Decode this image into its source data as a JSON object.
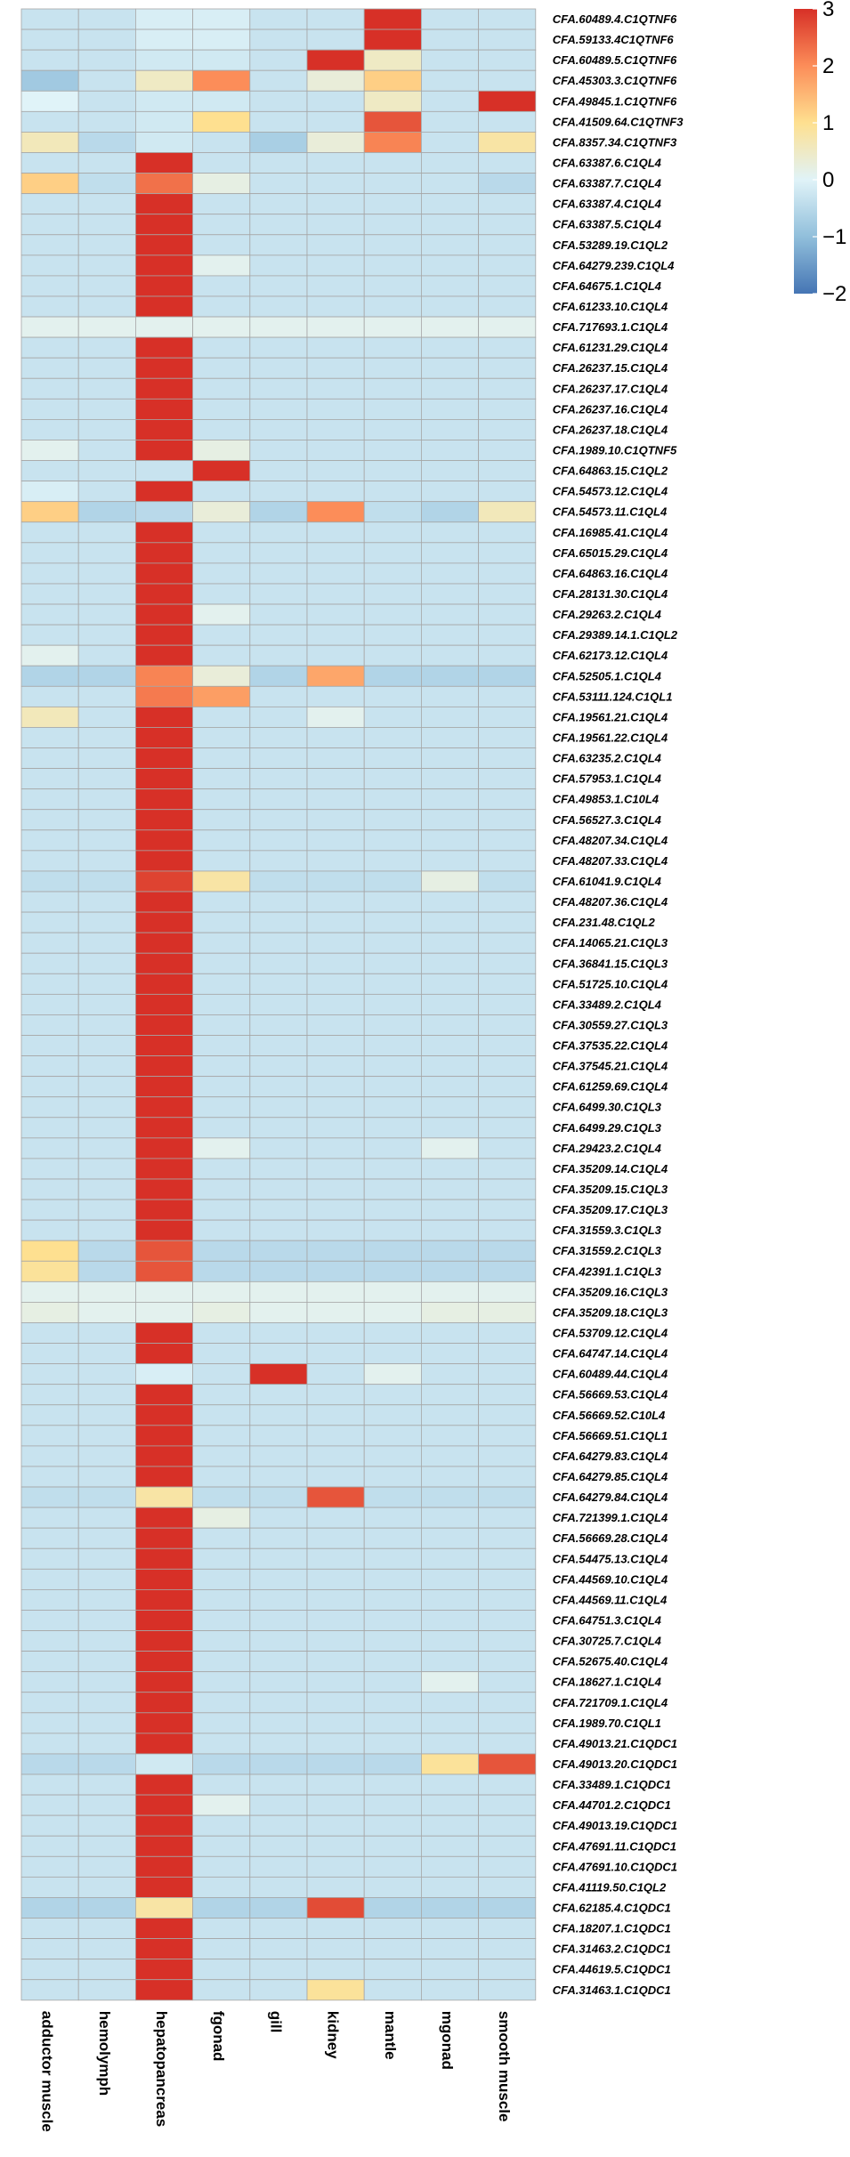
{
  "chart_data": {
    "type": "heatmap",
    "title": "",
    "columns": [
      "adductor muscle",
      "hemolymph",
      "hepatopancreas",
      "fgonad",
      "gill",
      "kidney",
      "mantle",
      "mgonad",
      "smooth muscle"
    ],
    "rows": [
      "CFA.60489.4.C1QTNF6",
      "CFA.59133.4C1QTNF6",
      "CFA.60489.5.C1QTNF6",
      "CFA.45303.3.C1QTNF6",
      "CFA.49845.1.C1QTNF6",
      "CFA.41509.64.C1QTNF3",
      "CFA.8357.34.C1QTNF3",
      "CFA.63387.6.C1QL4",
      "CFA.63387.7.C1QL4",
      "CFA.63387.4.C1QL4",
      "CFA.63387.5.C1QL4",
      "CFA.53289.19.C1QL2",
      "CFA.64279.239.C1QL4",
      "CFA.64675.1.C1QL4",
      "CFA.61233.10.C1QL4",
      "CFA.717693.1.C1QL4",
      "CFA.61231.29.C1QL4",
      "CFA.26237.15.C1QL4",
      "CFA.26237.17.C1QL4",
      "CFA.26237.16.C1QL4",
      "CFA.26237.18.C1QL4",
      "CFA.1989.10.C1QTNF5",
      "CFA.64863.15.C1QL2",
      "CFA.54573.12.C1QL4",
      "CFA.54573.11.C1QL4",
      "CFA.16985.41.C1QL4",
      "CFA.65015.29.C1QL4",
      "CFA.64863.16.C1QL4",
      "CFA.28131.30.C1QL4",
      "CFA.29263.2.C1QL4",
      "CFA.29389.14.1.C1QL2",
      "CFA.62173.12.C1QL4",
      "CFA.52505.1.C1QL4",
      "CFA.53111.124.C1QL1",
      "CFA.19561.21.C1QL4",
      "CFA.19561.22.C1QL4",
      "CFA.63235.2.C1QL4",
      "CFA.57953.1.C1QL4",
      "CFA.49853.1.C10L4",
      "CFA.56527.3.C1QL4",
      "CFA.48207.34.C1QL4",
      "CFA.48207.33.C1QL4",
      "CFA.61041.9.C1QL4",
      "CFA.48207.36.C1QL4",
      "CFA.231.48.C1QL2",
      "CFA.14065.21.C1QL3",
      "CFA.36841.15.C1QL3",
      "CFA.51725.10.C1QL4",
      "CFA.33489.2.C1QL4",
      "CFA.30559.27.C1QL3",
      "CFA.37535.22.C1QL4",
      "CFA.37545.21.C1QL4",
      "CFA.61259.69.C1QL4",
      "CFA.6499.30.C1QL3",
      "CFA.6499.29.C1QL3",
      "CFA.29423.2.C1QL4",
      "CFA.35209.14.C1QL4",
      "CFA.35209.15.C1QL3",
      "CFA.35209.17.C1QL3",
      "CFA.31559.3.C1QL3",
      "CFA.31559.2.C1QL3",
      "CFA.42391.1.C1QL3",
      "CFA.35209.16.C1QL3",
      "CFA.35209.18.C1QL3",
      "CFA.53709.12.C1QL4",
      "CFA.64747.14.C1QL4",
      "CFA.60489.44.C1QL4",
      "CFA.56669.53.C1QL4",
      "CFA.56669.52.C10L4",
      "CFA.56669.51.C1QL1",
      "CFA.64279.83.C1QL4",
      "CFA.64279.85.C1QL4",
      "CFA.64279.84.C1QL4",
      "CFA.721399.1.C1QL4",
      "CFA.56669.28.C1QL4",
      "CFA.54475.13.C1QL4",
      "CFA.44569.10.C1QL4",
      "CFA.44569.11.C1QL4",
      "CFA.64751.3.C1QL4",
      "CFA.30725.7.C1QL4",
      "CFA.52675.40.C1QL4",
      "CFA.18627.1.C1QL4",
      "CFA.721709.1.C1QL4",
      "CFA.1989.70.C1QL1",
      "CFA.49013.21.C1QDC1",
      "CFA.49013.20.C1QDC1",
      "CFA.33489.1.C1QDC1",
      "CFA.44701.2.C1QDC1",
      "CFA.49013.19.C1QDC1",
      "CFA.47691.11.C1QDC1",
      "CFA.47691.10.C1QDC1",
      "CFA.41119.50.C1QL2",
      "CFA.62185.4.C1QDC1",
      "CFA.18207.1.C1QDC1",
      "CFA.31463.2.C1QDC1",
      "CFA.44619.5.C1QDC1",
      "CFA.31463.1.C1QDC1"
    ],
    "values": [
      [
        -0.3,
        -0.3,
        -0.1,
        -0.1,
        -0.3,
        -0.3,
        3.0,
        -0.3,
        -0.3
      ],
      [
        -0.3,
        -0.3,
        -0.1,
        -0.1,
        -0.3,
        -0.3,
        3.0,
        -0.3,
        -0.3
      ],
      [
        -0.3,
        -0.3,
        -0.2,
        -0.2,
        -0.3,
        3.0,
        0.5,
        -0.3,
        -0.3
      ],
      [
        -0.8,
        -0.3,
        0.5,
        2.0,
        -0.3,
        0.3,
        1.2,
        -0.3,
        -0.3
      ],
      [
        0.0,
        -0.3,
        -0.2,
        -0.2,
        -0.3,
        -0.3,
        0.5,
        -0.3,
        3.0
      ],
      [
        -0.3,
        -0.3,
        -0.2,
        1.0,
        -0.3,
        -0.3,
        2.6,
        -0.3,
        -0.3
      ],
      [
        0.6,
        -0.5,
        -0.2,
        -0.3,
        -0.7,
        0.3,
        2.1,
        -0.3,
        0.8
      ],
      [
        -0.3,
        -0.3,
        3.0,
        -0.3,
        -0.3,
        -0.3,
        -0.3,
        -0.3,
        -0.3
      ],
      [
        1.2,
        -0.4,
        2.3,
        0.2,
        -0.3,
        -0.3,
        -0.3,
        -0.3,
        -0.5
      ],
      [
        -0.3,
        -0.3,
        3.0,
        -0.3,
        -0.3,
        -0.3,
        -0.3,
        -0.3,
        -0.3
      ],
      [
        -0.3,
        -0.3,
        3.0,
        -0.3,
        -0.3,
        -0.3,
        -0.3,
        -0.3,
        -0.3
      ],
      [
        -0.3,
        -0.3,
        3.0,
        -0.3,
        -0.3,
        -0.3,
        -0.3,
        -0.3,
        -0.3
      ],
      [
        -0.3,
        -0.3,
        3.0,
        0.1,
        -0.3,
        -0.3,
        -0.3,
        -0.3,
        -0.3
      ],
      [
        -0.3,
        -0.3,
        3.0,
        -0.3,
        -0.3,
        -0.3,
        -0.3,
        -0.3,
        -0.3
      ],
      [
        -0.3,
        -0.3,
        3.0,
        -0.3,
        -0.3,
        -0.3,
        -0.3,
        -0.3,
        -0.3
      ],
      [
        0.1,
        0.1,
        0.1,
        0.1,
        0.1,
        0.1,
        0.1,
        0.1,
        0.1
      ],
      [
        -0.3,
        -0.3,
        3.0,
        -0.3,
        -0.3,
        -0.3,
        -0.3,
        -0.3,
        -0.3
      ],
      [
        -0.3,
        -0.3,
        3.0,
        -0.3,
        -0.3,
        -0.3,
        -0.3,
        -0.3,
        -0.3
      ],
      [
        -0.3,
        -0.3,
        3.0,
        -0.3,
        -0.3,
        -0.3,
        -0.3,
        -0.3,
        -0.3
      ],
      [
        -0.3,
        -0.3,
        3.0,
        -0.3,
        -0.3,
        -0.3,
        -0.3,
        -0.3,
        -0.3
      ],
      [
        -0.3,
        -0.3,
        3.0,
        -0.3,
        -0.3,
        -0.3,
        -0.3,
        -0.3,
        -0.3
      ],
      [
        0.1,
        -0.3,
        3.0,
        0.2,
        -0.3,
        -0.3,
        -0.3,
        -0.3,
        -0.3
      ],
      [
        -0.3,
        -0.3,
        -0.3,
        3.0,
        -0.3,
        -0.3,
        -0.3,
        -0.3,
        -0.3
      ],
      [
        -0.1,
        -0.3,
        3.0,
        -0.3,
        -0.3,
        -0.3,
        -0.3,
        -0.3,
        -0.3
      ],
      [
        1.2,
        -0.6,
        -0.5,
        0.3,
        -0.6,
        2.0,
        -0.4,
        -0.6,
        0.6
      ],
      [
        -0.3,
        -0.3,
        3.0,
        -0.3,
        -0.3,
        -0.3,
        -0.3,
        -0.3,
        -0.3
      ],
      [
        -0.3,
        -0.3,
        3.0,
        -0.3,
        -0.3,
        -0.3,
        -0.3,
        -0.3,
        -0.3
      ],
      [
        -0.3,
        -0.3,
        3.0,
        -0.3,
        -0.3,
        -0.3,
        -0.3,
        -0.3,
        -0.3
      ],
      [
        -0.3,
        -0.3,
        3.0,
        -0.3,
        -0.3,
        -0.3,
        -0.3,
        -0.3,
        -0.3
      ],
      [
        -0.3,
        -0.3,
        3.0,
        0.1,
        -0.3,
        -0.3,
        -0.3,
        -0.3,
        -0.3
      ],
      [
        -0.3,
        -0.3,
        3.0,
        -0.3,
        -0.3,
        -0.3,
        -0.3,
        -0.3,
        -0.3
      ],
      [
        0.1,
        -0.3,
        3.0,
        -0.3,
        -0.3,
        -0.3,
        -0.3,
        -0.3,
        -0.3
      ],
      [
        -0.6,
        -0.6,
        2.1,
        0.3,
        -0.6,
        1.7,
        -0.6,
        -0.6,
        -0.6
      ],
      [
        -0.3,
        -0.3,
        2.2,
        1.8,
        -0.3,
        -0.3,
        -0.3,
        -0.3,
        -0.3
      ],
      [
        0.6,
        -0.3,
        3.0,
        -0.3,
        -0.3,
        0.1,
        -0.3,
        -0.3,
        -0.3
      ],
      [
        -0.3,
        -0.3,
        3.0,
        -0.3,
        -0.3,
        -0.3,
        -0.3,
        -0.3,
        -0.3
      ],
      [
        -0.3,
        -0.3,
        3.0,
        -0.3,
        -0.3,
        -0.3,
        -0.3,
        -0.3,
        -0.3
      ],
      [
        -0.3,
        -0.3,
        3.0,
        -0.3,
        -0.3,
        -0.3,
        -0.3,
        -0.3,
        -0.3
      ],
      [
        -0.3,
        -0.3,
        3.0,
        -0.3,
        -0.3,
        -0.3,
        -0.3,
        -0.3,
        -0.3
      ],
      [
        -0.3,
        -0.3,
        3.0,
        -0.3,
        -0.3,
        -0.3,
        -0.3,
        -0.3,
        -0.3
      ],
      [
        -0.3,
        -0.3,
        3.0,
        -0.3,
        -0.3,
        -0.3,
        -0.3,
        -0.3,
        -0.3
      ],
      [
        -0.3,
        -0.3,
        3.0,
        -0.3,
        -0.3,
        -0.3,
        -0.3,
        -0.3,
        -0.3
      ],
      [
        -0.4,
        -0.4,
        2.8,
        0.8,
        -0.4,
        -0.4,
        -0.4,
        0.2,
        -0.4
      ],
      [
        -0.3,
        -0.3,
        3.0,
        -0.3,
        -0.3,
        -0.3,
        -0.3,
        -0.3,
        -0.3
      ],
      [
        -0.3,
        -0.3,
        3.0,
        -0.3,
        -0.3,
        -0.3,
        -0.3,
        -0.3,
        -0.3
      ],
      [
        -0.3,
        -0.3,
        3.0,
        -0.3,
        -0.3,
        -0.3,
        -0.3,
        -0.3,
        -0.3
      ],
      [
        -0.3,
        -0.3,
        3.0,
        -0.3,
        -0.3,
        -0.3,
        -0.3,
        -0.3,
        -0.3
      ],
      [
        -0.3,
        -0.3,
        3.0,
        -0.3,
        -0.3,
        -0.3,
        -0.3,
        -0.3,
        -0.3
      ],
      [
        -0.3,
        -0.3,
        3.0,
        -0.3,
        -0.3,
        -0.3,
        -0.3,
        -0.3,
        -0.3
      ],
      [
        -0.3,
        -0.3,
        3.0,
        -0.3,
        -0.3,
        -0.3,
        -0.3,
        -0.3,
        -0.3
      ],
      [
        -0.3,
        -0.3,
        3.0,
        -0.3,
        -0.3,
        -0.3,
        -0.3,
        -0.3,
        -0.3
      ],
      [
        -0.3,
        -0.3,
        3.0,
        -0.3,
        -0.3,
        -0.3,
        -0.3,
        -0.3,
        -0.3
      ],
      [
        -0.3,
        -0.3,
        3.0,
        -0.3,
        -0.3,
        -0.3,
        -0.3,
        -0.3,
        -0.3
      ],
      [
        -0.3,
        -0.3,
        3.0,
        -0.3,
        -0.3,
        -0.3,
        -0.3,
        -0.3,
        -0.3
      ],
      [
        -0.3,
        -0.3,
        3.0,
        -0.3,
        -0.3,
        -0.3,
        -0.3,
        -0.3,
        -0.3
      ],
      [
        -0.3,
        -0.3,
        3.0,
        0.1,
        -0.3,
        -0.3,
        -0.3,
        0.1,
        -0.3
      ],
      [
        -0.3,
        -0.3,
        3.0,
        -0.3,
        -0.3,
        -0.3,
        -0.3,
        -0.3,
        -0.3
      ],
      [
        -0.3,
        -0.3,
        3.0,
        -0.3,
        -0.3,
        -0.3,
        -0.3,
        -0.3,
        -0.3
      ],
      [
        -0.3,
        -0.3,
        3.0,
        -0.3,
        -0.3,
        -0.3,
        -0.3,
        -0.3,
        -0.3
      ],
      [
        -0.3,
        -0.3,
        3.0,
        -0.3,
        -0.3,
        -0.3,
        -0.3,
        -0.3,
        -0.3
      ],
      [
        1.0,
        -0.5,
        2.6,
        -0.5,
        -0.5,
        -0.5,
        -0.5,
        -0.5,
        -0.5
      ],
      [
        0.9,
        -0.5,
        2.6,
        -0.5,
        -0.5,
        -0.5,
        -0.5,
        -0.5,
        -0.5
      ],
      [
        0.1,
        0.1,
        0.1,
        0.1,
        0.1,
        0.1,
        0.1,
        0.1,
        0.1
      ],
      [
        0.2,
        0.1,
        0.1,
        0.2,
        0.1,
        0.1,
        0.1,
        0.2,
        0.2
      ],
      [
        -0.3,
        -0.3,
        3.0,
        -0.3,
        -0.3,
        -0.3,
        -0.3,
        -0.3,
        -0.3
      ],
      [
        -0.3,
        -0.3,
        3.0,
        -0.3,
        -0.3,
        -0.3,
        -0.3,
        -0.3,
        -0.3
      ],
      [
        -0.3,
        -0.3,
        -0.1,
        -0.3,
        3.0,
        -0.3,
        0.1,
        -0.3,
        -0.3
      ],
      [
        -0.3,
        -0.3,
        3.0,
        -0.3,
        -0.3,
        -0.3,
        -0.3,
        -0.3,
        -0.3
      ],
      [
        -0.3,
        -0.3,
        3.0,
        -0.3,
        -0.3,
        -0.3,
        -0.3,
        -0.3,
        -0.3
      ],
      [
        -0.3,
        -0.3,
        3.0,
        -0.3,
        -0.3,
        -0.3,
        -0.3,
        -0.3,
        -0.3
      ],
      [
        -0.3,
        -0.3,
        3.0,
        -0.3,
        -0.3,
        -0.3,
        -0.3,
        -0.3,
        -0.3
      ],
      [
        -0.3,
        -0.3,
        3.0,
        -0.3,
        -0.3,
        -0.3,
        -0.3,
        -0.3,
        -0.3
      ],
      [
        -0.4,
        -0.4,
        0.8,
        -0.4,
        -0.4,
        2.6,
        -0.4,
        -0.4,
        -0.4
      ],
      [
        -0.3,
        -0.3,
        3.0,
        0.2,
        -0.3,
        -0.3,
        -0.3,
        -0.3,
        -0.3
      ],
      [
        -0.3,
        -0.3,
        3.0,
        -0.3,
        -0.3,
        -0.3,
        -0.3,
        -0.3,
        -0.3
      ],
      [
        -0.3,
        -0.3,
        3.0,
        -0.3,
        -0.3,
        -0.3,
        -0.3,
        -0.3,
        -0.3
      ],
      [
        -0.3,
        -0.3,
        3.0,
        -0.3,
        -0.3,
        -0.3,
        -0.3,
        -0.3,
        -0.3
      ],
      [
        -0.3,
        -0.3,
        3.0,
        -0.3,
        -0.3,
        -0.3,
        -0.3,
        -0.3,
        -0.3
      ],
      [
        -0.3,
        -0.3,
        3.0,
        -0.3,
        -0.3,
        -0.3,
        -0.3,
        -0.3,
        -0.3
      ],
      [
        -0.3,
        -0.3,
        3.0,
        -0.3,
        -0.3,
        -0.3,
        -0.3,
        -0.3,
        -0.3
      ],
      [
        -0.3,
        -0.3,
        3.0,
        -0.3,
        -0.3,
        -0.3,
        -0.3,
        -0.3,
        -0.3
      ],
      [
        -0.3,
        -0.3,
        3.0,
        -0.3,
        -0.3,
        -0.3,
        -0.3,
        0.1,
        -0.3
      ],
      [
        -0.3,
        -0.3,
        3.0,
        -0.3,
        -0.3,
        -0.3,
        -0.3,
        -0.3,
        -0.3
      ],
      [
        -0.3,
        -0.3,
        3.0,
        -0.3,
        -0.3,
        -0.3,
        -0.3,
        -0.3,
        -0.3
      ],
      [
        -0.3,
        -0.3,
        3.0,
        -0.3,
        -0.3,
        -0.3,
        -0.3,
        -0.3,
        -0.3
      ],
      [
        -0.5,
        -0.5,
        -0.2,
        -0.5,
        -0.5,
        -0.5,
        -0.5,
        0.9,
        2.6
      ],
      [
        -0.3,
        -0.3,
        3.0,
        -0.3,
        -0.3,
        -0.3,
        -0.3,
        -0.3,
        -0.3
      ],
      [
        -0.3,
        -0.3,
        3.0,
        0.1,
        -0.3,
        -0.3,
        -0.3,
        -0.3,
        -0.3
      ],
      [
        -0.3,
        -0.3,
        3.0,
        -0.3,
        -0.3,
        -0.3,
        -0.3,
        -0.3,
        -0.3
      ],
      [
        -0.3,
        -0.3,
        3.0,
        -0.3,
        -0.3,
        -0.3,
        -0.3,
        -0.3,
        -0.3
      ],
      [
        -0.3,
        -0.3,
        3.0,
        -0.3,
        -0.3,
        -0.3,
        -0.3,
        -0.3,
        -0.3
      ],
      [
        -0.3,
        -0.3,
        3.0,
        -0.3,
        -0.3,
        -0.3,
        -0.3,
        -0.3,
        -0.3
      ],
      [
        -0.6,
        -0.6,
        0.8,
        -0.6,
        -0.6,
        2.7,
        -0.6,
        -0.6,
        -0.6
      ],
      [
        -0.3,
        -0.3,
        3.0,
        -0.3,
        -0.3,
        -0.3,
        -0.3,
        -0.3,
        -0.3
      ],
      [
        -0.3,
        -0.3,
        3.0,
        -0.3,
        -0.3,
        -0.3,
        -0.3,
        -0.3,
        -0.3
      ],
      [
        -0.3,
        -0.3,
        3.0,
        -0.3,
        -0.3,
        -0.3,
        -0.3,
        -0.3,
        -0.3
      ],
      [
        -0.3,
        -0.3,
        3.0,
        -0.3,
        -0.3,
        0.9,
        -0.3,
        -0.3,
        -0.3
      ]
    ],
    "color_scale": {
      "range": [
        -2,
        3
      ],
      "ticks": [
        3,
        2,
        1,
        0,
        -1,
        -2
      ],
      "tick_labels": [
        "3",
        "2",
        "1",
        "0",
        "−1",
        "−2"
      ],
      "stops": [
        {
          "value": -2,
          "color": "#4575b4"
        },
        {
          "value": -1,
          "color": "#91bfdb"
        },
        {
          "value": 0,
          "color": "#e0f3f8"
        },
        {
          "value": 1,
          "color": "#fee090"
        },
        {
          "value": 2,
          "color": "#fc8d59"
        },
        {
          "value": 3,
          "color": "#d73027"
        }
      ]
    },
    "legend_position": "top-right",
    "grid": true,
    "cell_border_color": "#a6a6a6"
  }
}
